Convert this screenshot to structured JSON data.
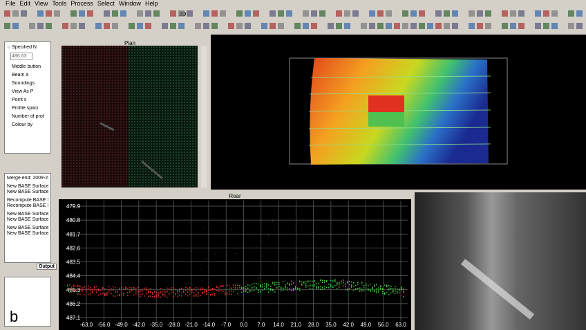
{
  "menu": [
    "File",
    "Edit",
    "View",
    "Tools",
    "Process",
    "Select",
    "Window",
    "Help"
  ],
  "toolbar": {
    "view_3d": "3D"
  },
  "control_panel": {
    "mode": "Specified N",
    "depth_value": "486.63",
    "items": [
      "Middle button",
      "Beam a",
      "Soundings",
      "View As P",
      "Point s",
      "Profile spaci",
      "Number of prof",
      "Colour by"
    ]
  },
  "output_panel": {
    "lines": [
      "Merge end: 2009-2(",
      "New BASE Surface",
      "New BASE Surface",
      "Recompute BASE S",
      "Recompute BASE S",
      "New BASE Surface",
      "New BASE Surface",
      "New BASE Surface",
      "New BASE Surface"
    ],
    "tab": "Output"
  },
  "plan_view": {
    "title": "Plan"
  },
  "rear_view": {
    "title": "Rear",
    "yticks": [
      479.9,
      480.8,
      481.7,
      482.6,
      483.5,
      484.4,
      485.3,
      486.2,
      487.1
    ],
    "xticks": [
      {
        "value": -63,
        "label": "-63.0"
      },
      {
        "value": -56,
        "label": "-56.0"
      },
      {
        "value": -49,
        "label": "-49.0"
      },
      {
        "value": -42,
        "label": "-42.0"
      },
      {
        "value": -35,
        "label": "-35.0"
      },
      {
        "value": -28,
        "label": "-28.0"
      },
      {
        "value": -21,
        "label": "-21.0"
      },
      {
        "value": -14,
        "label": "-14.0"
      },
      {
        "value": -7,
        "label": "-7.0"
      },
      {
        "value": 0,
        "label": "0.0"
      },
      {
        "value": 7,
        "label": "7.0"
      },
      {
        "value": 14,
        "label": "14.0"
      },
      {
        "value": 21,
        "label": "21.0"
      },
      {
        "value": 28,
        "label": "28.0"
      },
      {
        "value": 35,
        "label": "35.0"
      },
      {
        "value": 42,
        "label": "42.0"
      },
      {
        "value": 49,
        "label": "49.0"
      },
      {
        "value": 56,
        "label": "56.0"
      },
      {
        "value": 63,
        "label": "63.0"
      }
    ]
  },
  "figure_label": "b"
}
